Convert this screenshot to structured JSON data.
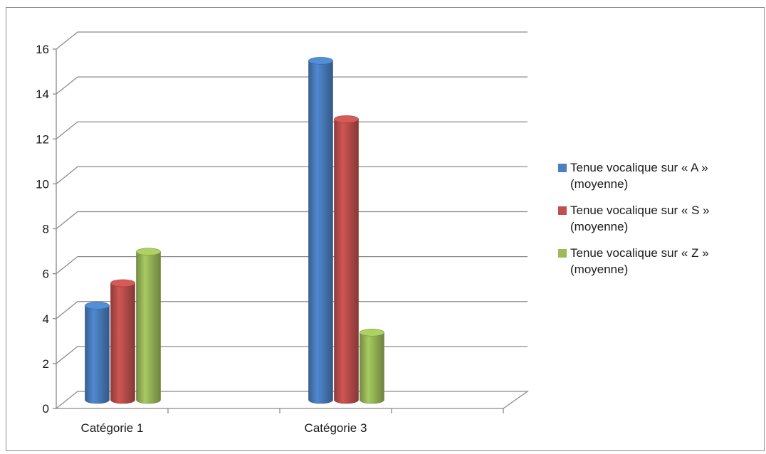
{
  "chart_data": {
    "type": "bar",
    "style": "3d-cylinder",
    "title": "",
    "xlabel": "",
    "ylabel": "",
    "ylim": [
      0,
      16
    ],
    "y_ticks": [
      "0",
      "2",
      "4",
      "6",
      "8",
      "10",
      "12",
      "14",
      "16"
    ],
    "categories": [
      "Catégorie 1",
      "",
      "Catégorie 3",
      ""
    ],
    "series": [
      {
        "name": "Tenue vocalique sur « A » (moyenne)",
        "color": "#4a7fc1",
        "values": [
          4.2,
          null,
          15.1,
          null
        ]
      },
      {
        "name": "Tenue vocalique sur « S » (moyenne)",
        "color": "#c0504d",
        "values": [
          5.2,
          null,
          12.5,
          null
        ]
      },
      {
        "name": "Tenue vocalique sur « Z » (moyenne)",
        "color": "#9bbb59",
        "values": [
          6.6,
          null,
          3.0,
          null
        ]
      }
    ],
    "grid": true,
    "legend_position": "right"
  }
}
